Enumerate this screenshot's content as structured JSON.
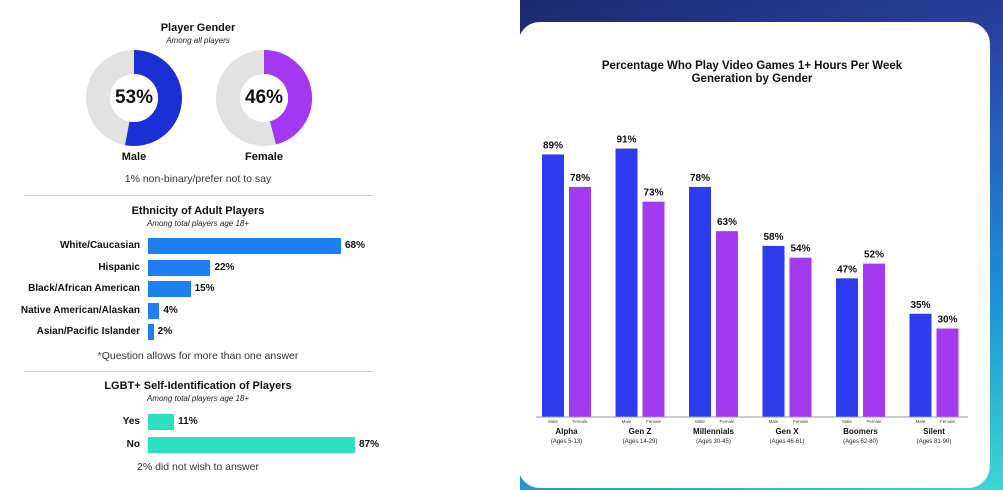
{
  "gender": {
    "title": "Player Gender",
    "subtitle": "Among all players",
    "male": {
      "label": "Male",
      "pct_text": "53%",
      "value": 53,
      "color": "#1a2fd6"
    },
    "female": {
      "label": "Female",
      "pct_text": "46%",
      "value": 46,
      "color": "#a238f2"
    },
    "note": "1% non-binary/prefer not to say"
  },
  "ethnicity": {
    "title": "Ethnicity of Adult Players",
    "subtitle": "Among total players age 18+",
    "note": "*Question allows for more than one answer",
    "color": "#1e7ff0",
    "rows": [
      {
        "label": "White/Caucasian",
        "value": 68,
        "value_text": "68%"
      },
      {
        "label": "Hispanic",
        "value": 22,
        "value_text": "22%"
      },
      {
        "label": "Black/African American",
        "value": 15,
        "value_text": "15%"
      },
      {
        "label": "Native American/Alaskan",
        "value": 4,
        "value_text": "4%"
      },
      {
        "label": "Asian/Pacific Islander",
        "value": 2,
        "value_text": "2%"
      }
    ]
  },
  "lgbt": {
    "title": "LGBT+ Self-Identification of Players",
    "subtitle": "Among total players age 18+",
    "note": "2% did not wish to answer",
    "color": "#2ee0c0",
    "rows": [
      {
        "label": "Yes",
        "value": 11,
        "value_text": "11%"
      },
      {
        "label": "No",
        "value": 87,
        "value_text": "87%"
      }
    ]
  },
  "chart_data": {
    "type": "bar",
    "title_line1": "Percentage Who Play Video Games 1+ Hours Per Week",
    "title_line2": "Generation by Gender",
    "series_labels": {
      "male": "Male",
      "female": "Female"
    },
    "male_color": "#2e3cf0",
    "female_color": "#a43af0",
    "ylim": [
      0,
      100
    ],
    "groups": [
      {
        "name": "Alpha",
        "ages": "(Ages 5-13)",
        "male": 89,
        "female": 78,
        "male_text": "89%",
        "female_text": "78%"
      },
      {
        "name": "Gen Z",
        "ages": "(Ages 14-29)",
        "male": 91,
        "female": 73,
        "male_text": "91%",
        "female_text": "73%"
      },
      {
        "name": "Millennials",
        "ages": "(Ages 30-45)",
        "male": 78,
        "female": 63,
        "male_text": "78%",
        "female_text": "63%"
      },
      {
        "name": "Gen X",
        "ages": "(Ages 46-61)",
        "male": 58,
        "female": 54,
        "male_text": "58%",
        "female_text": "54%"
      },
      {
        "name": "Boomers",
        "ages": "(Ages 62-80)",
        "male": 47,
        "female": 52,
        "male_text": "47%",
        "female_text": "52%"
      },
      {
        "name": "Silent",
        "ages": "(Ages 81-90)",
        "male": 35,
        "female": 30,
        "male_text": "35%",
        "female_text": "30%"
      }
    ]
  }
}
